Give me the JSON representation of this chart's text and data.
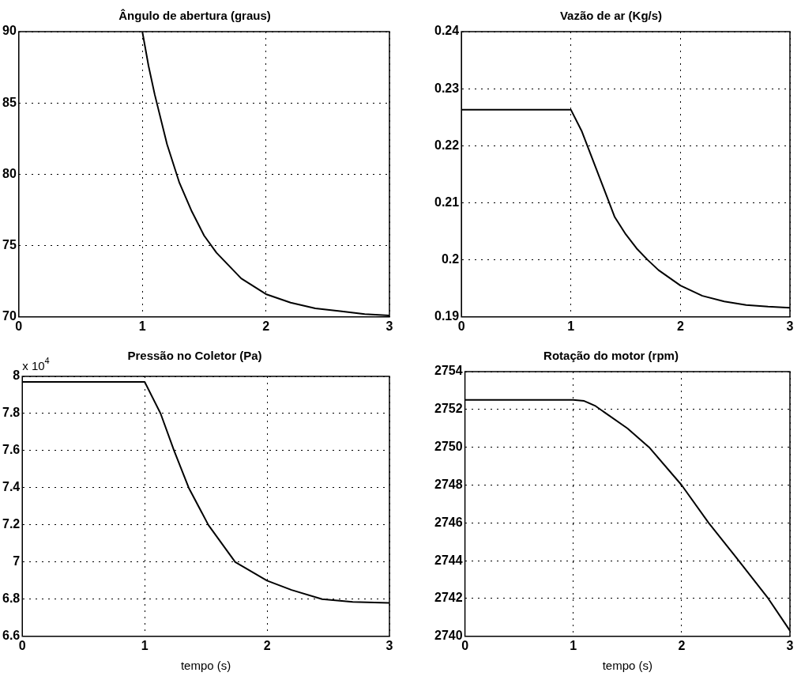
{
  "chart_data": [
    {
      "type": "line",
      "title": "Ângulo de abertura (graus)",
      "x": [
        1,
        1.05,
        1.1,
        1.2,
        1.3,
        1.4,
        1.5,
        1.6,
        1.8,
        2,
        2.2,
        2.4,
        2.6,
        2.8,
        3
      ],
      "series": [
        {
          "color": "#000000",
          "values": [
            90,
            87.6,
            85.6,
            82.1,
            79.4,
            77.4,
            75.7,
            74.5,
            72.7,
            71.6,
            71.0,
            70.6,
            70.4,
            70.2,
            70.1
          ]
        }
      ],
      "xlim": [
        0,
        3
      ],
      "xticks": [
        0,
        1,
        2,
        3
      ],
      "ylim": [
        70,
        90
      ],
      "yticks": [
        70,
        75,
        80,
        85,
        90
      ],
      "grid": true
    },
    {
      "type": "line",
      "title": "Vazão de ar (Kg/s)",
      "x": [
        0,
        1,
        1.1,
        1.2,
        1.3,
        1.4,
        1.5,
        1.6,
        1.7,
        1.8,
        2,
        2.2,
        2.4,
        2.6,
        2.8,
        3
      ],
      "series": [
        {
          "color": "#000000",
          "values": [
            0.2263,
            0.2263,
            0.2225,
            0.2175,
            0.2125,
            0.2075,
            0.2045,
            0.202,
            0.2,
            0.1982,
            0.1955,
            0.1937,
            0.1927,
            0.1921,
            0.1918,
            0.1916
          ]
        }
      ],
      "xlim": [
        0,
        3
      ],
      "xticks": [
        0,
        1,
        2,
        3
      ],
      "ylim": [
        0.19,
        0.24
      ],
      "yticks": [
        0.19,
        0.2,
        0.21,
        0.22,
        0.23,
        0.24
      ],
      "grid": true
    },
    {
      "type": "line",
      "title": "Pressão no Coletor (Pa)",
      "xlabel": "tempo (s)",
      "annotations": [
        "x 10$^{4}$"
      ],
      "x": [
        0,
        1,
        1.13,
        1.24,
        1.36,
        1.52,
        1.74,
        2,
        2.2,
        2.45,
        2.7,
        3
      ],
      "series": [
        {
          "color": "#000000",
          "values": [
            7.97,
            7.97,
            7.8,
            7.6,
            7.4,
            7.2,
            7.0,
            6.9,
            6.85,
            6.8,
            6.785,
            6.78
          ]
        }
      ],
      "xlim": [
        0,
        3
      ],
      "xticks": [
        0,
        1,
        2,
        3
      ],
      "ylim": [
        6.6,
        8
      ],
      "yticks": [
        6.6,
        6.8,
        7,
        7.2,
        7.4,
        7.6,
        7.8,
        8
      ],
      "grid": true
    },
    {
      "type": "line",
      "title": "Rotação do motor (rpm)",
      "xlabel": "tempo (s)",
      "x": [
        0,
        1,
        1.1,
        1.2,
        1.3,
        1.5,
        1.7,
        2,
        2.25,
        2.5,
        2.8,
        3
      ],
      "series": [
        {
          "color": "#000000",
          "values": [
            2752.5,
            2752.5,
            2752.45,
            2752.2,
            2751.8,
            2751.0,
            2750.0,
            2748.0,
            2746.0,
            2744.2,
            2742.0,
            2740.3
          ]
        }
      ],
      "xlim": [
        0,
        3
      ],
      "xticks": [
        0,
        1,
        2,
        3
      ],
      "ylim": [
        2740,
        2754
      ],
      "yticks": [
        2740,
        2742,
        2744,
        2746,
        2748,
        2750,
        2752,
        2754
      ],
      "grid": true
    }
  ]
}
